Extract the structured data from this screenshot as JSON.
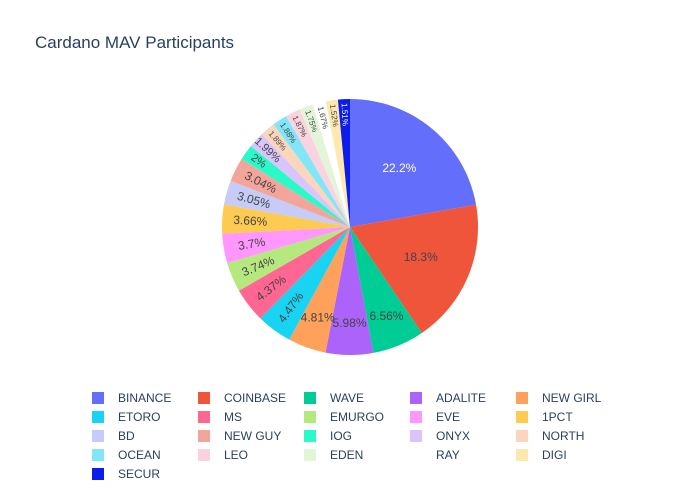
{
  "chart_data": {
    "type": "pie",
    "title": "Cardano MAV Participants",
    "sort": "descending",
    "direction": "clockwise",
    "rotation_start": "top",
    "legend_placement": "bottom",
    "labels": [
      "BINANCE",
      "COINBASE",
      "WAVE",
      "ADALITE",
      "NEW GIRL",
      "ETORO",
      "MS",
      "EMURGO",
      "EVE",
      "1PCT",
      "BD",
      "NEW GUY",
      "IOG",
      "ONYX",
      "NORTH",
      "OCEAN",
      "LEO",
      "EDEN",
      "RAY",
      "DIGI",
      "SECUR"
    ],
    "values": [
      22.2,
      18.3,
      6.56,
      5.98,
      4.81,
      4.47,
      4.37,
      3.74,
      3.7,
      3.66,
      3.05,
      3.04,
      2.0,
      1.99,
      1.89,
      1.88,
      1.87,
      1.75,
      1.67,
      1.52,
      1.51
    ],
    "value_labels": [
      "22.2%",
      "18.3%",
      "6.56%",
      "5.98%",
      "4.81%",
      "4.47%",
      "4.37%",
      "3.74%",
      "3.7%",
      "3.66%",
      "3.05%",
      "3.04%",
      "2%",
      "1.99%",
      "1.89%",
      "1.88%",
      "1.87%",
      "1.75%",
      "1.67%",
      "1.52%",
      "1.51%"
    ],
    "colors": [
      "#636efa",
      "#EF553B",
      "#00cc96",
      "#ab63fa",
      "#FFA15A",
      "#19d3f3",
      "#FF6692",
      "#B6E880",
      "#FF97FF",
      "#FECB52",
      "#c6cbf7",
      "#f4a59b",
      "#2cf9c8",
      "#dac4fc",
      "#fbd6bc",
      "#80e6f8",
      "#fbd3df",
      "#e2f5d8",
      "#ffffff",
      "#ffe8ae",
      "#0c1de9"
    ],
    "label_colors": [
      "#ffffff",
      "#444444",
      "#444444",
      "#444444",
      "#444444",
      "#444444",
      "#444444",
      "#444444",
      "#444444",
      "#444444",
      "#444444",
      "#444444",
      "#444444",
      "#444444",
      "#444444",
      "#444444",
      "#444444",
      "#444444",
      "#444444",
      "#444444",
      "#ffffff"
    ],
    "legend_order": [
      "BINANCE",
      "COINBASE",
      "WAVE",
      "ADALITE",
      "NEW GIRL",
      "ETORO",
      "MS",
      "EMURGO",
      "EVE",
      "1PCT",
      "BD",
      "NEW GUY",
      "IOG",
      "ONYX",
      "NORTH",
      "OCEAN",
      "LEO",
      "EDEN",
      "RAY",
      "DIGI",
      "SECUR"
    ]
  }
}
